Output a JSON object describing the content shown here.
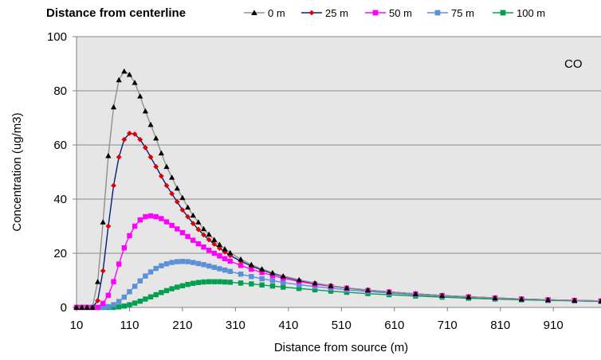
{
  "chart_data": {
    "type": "line",
    "legend": {
      "title": "Distance from centerline",
      "placement": "top"
    },
    "annotation": "CO",
    "xlabel": "Distance from source (m)",
    "ylabel": "Concentration (ug/m3)",
    "xlim": [
      10,
      1000
    ],
    "ylim": [
      0,
      100
    ],
    "x_ticks": [
      10,
      110,
      210,
      310,
      410,
      510,
      610,
      710,
      810,
      910
    ],
    "x_tick_labels": [
      "10",
      "110",
      "210",
      "310",
      "410",
      "510",
      "610",
      "710",
      "810",
      "910"
    ],
    "y_ticks": [
      0,
      20,
      40,
      60,
      80,
      100
    ],
    "y_tick_labels": [
      "0",
      "20",
      "40",
      "60",
      "80",
      "100"
    ],
    "grid": {
      "horizontal": true,
      "vertical": false
    },
    "plot_background": "#e6e6e6",
    "series": [
      {
        "name": "0 m",
        "line_color": "#909090",
        "marker_color": "#000000",
        "marker": "triangle",
        "points": [
          [
            10,
            0
          ],
          [
            20,
            0
          ],
          [
            30,
            0
          ],
          [
            40,
            0
          ],
          [
            50,
            9.5
          ],
          [
            60,
            31.5
          ],
          [
            70,
            56
          ],
          [
            80,
            74
          ],
          [
            90,
            84
          ],
          [
            100,
            87.2
          ],
          [
            110,
            86
          ],
          [
            120,
            83
          ],
          [
            130,
            78
          ],
          [
            140,
            72.5
          ],
          [
            150,
            67.5
          ],
          [
            160,
            62.5
          ],
          [
            170,
            57
          ],
          [
            180,
            52
          ],
          [
            190,
            48
          ],
          [
            200,
            44
          ],
          [
            210,
            40.5
          ],
          [
            220,
            37
          ],
          [
            230,
            34
          ],
          [
            240,
            31.5
          ],
          [
            250,
            29
          ],
          [
            260,
            27
          ],
          [
            270,
            25
          ],
          [
            280,
            23.2
          ],
          [
            290,
            21.6
          ],
          [
            300,
            20.2
          ],
          [
            320,
            17.8
          ],
          [
            340,
            15.8
          ],
          [
            360,
            14.2
          ],
          [
            380,
            12.8
          ],
          [
            400,
            11.6
          ],
          [
            430,
            10.2
          ],
          [
            460,
            9
          ],
          [
            490,
            8
          ],
          [
            520,
            7.2
          ],
          [
            560,
            6.4
          ],
          [
            600,
            5.7
          ],
          [
            650,
            5
          ],
          [
            700,
            4.4
          ],
          [
            750,
            3.9
          ],
          [
            800,
            3.5
          ],
          [
            850,
            3.1
          ],
          [
            900,
            2.8
          ],
          [
            950,
            2.6
          ],
          [
            1000,
            2.4
          ]
        ]
      },
      {
        "name": "25 m",
        "line_color": "#002080",
        "marker_color": "#e00000",
        "marker": "diamond",
        "points": [
          [
            10,
            0
          ],
          [
            20,
            0
          ],
          [
            30,
            0
          ],
          [
            40,
            0
          ],
          [
            50,
            2.5
          ],
          [
            60,
            13.5
          ],
          [
            70,
            30
          ],
          [
            80,
            45
          ],
          [
            90,
            55.5
          ],
          [
            100,
            62
          ],
          [
            110,
            64.3
          ],
          [
            120,
            64
          ],
          [
            130,
            62
          ],
          [
            140,
            59
          ],
          [
            150,
            55.5
          ],
          [
            160,
            52
          ],
          [
            170,
            48.5
          ],
          [
            180,
            45
          ],
          [
            190,
            42
          ],
          [
            200,
            39
          ],
          [
            210,
            36
          ],
          [
            220,
            33.5
          ],
          [
            230,
            31
          ],
          [
            240,
            28.8
          ],
          [
            250,
            26.8
          ],
          [
            260,
            25
          ],
          [
            270,
            23.4
          ],
          [
            280,
            21.9
          ],
          [
            290,
            20.5
          ],
          [
            300,
            19.2
          ],
          [
            320,
            17.1
          ],
          [
            340,
            15.3
          ],
          [
            360,
            13.8
          ],
          [
            380,
            12.5
          ],
          [
            400,
            11.4
          ],
          [
            430,
            10
          ],
          [
            460,
            8.9
          ],
          [
            490,
            8
          ],
          [
            520,
            7.2
          ],
          [
            560,
            6.4
          ],
          [
            600,
            5.7
          ],
          [
            650,
            5
          ],
          [
            700,
            4.4
          ],
          [
            750,
            3.9
          ],
          [
            800,
            3.5
          ],
          [
            850,
            3.1
          ],
          [
            900,
            2.8
          ],
          [
            950,
            2.6
          ],
          [
            1000,
            2.4
          ]
        ]
      },
      {
        "name": "50 m",
        "line_color": "#ff00ff",
        "marker_color": "#ff00ff",
        "marker": "square",
        "points": [
          [
            10,
            0
          ],
          [
            20,
            0
          ],
          [
            30,
            0
          ],
          [
            40,
            0
          ],
          [
            50,
            0
          ],
          [
            60,
            1.5
          ],
          [
            70,
            4.5
          ],
          [
            80,
            9.5
          ],
          [
            90,
            16
          ],
          [
            100,
            22
          ],
          [
            110,
            26.5
          ],
          [
            120,
            30
          ],
          [
            130,
            32.3
          ],
          [
            140,
            33.5
          ],
          [
            150,
            33.8
          ],
          [
            160,
            33.5
          ],
          [
            170,
            32.8
          ],
          [
            180,
            31.6
          ],
          [
            190,
            30.3
          ],
          [
            200,
            29
          ],
          [
            210,
            27.6
          ],
          [
            220,
            26.2
          ],
          [
            230,
            24.8
          ],
          [
            240,
            23.5
          ],
          [
            250,
            22.3
          ],
          [
            260,
            21.1
          ],
          [
            270,
            20
          ],
          [
            280,
            19
          ],
          [
            290,
            18
          ],
          [
            300,
            17.1
          ],
          [
            320,
            15.5
          ],
          [
            340,
            14.1
          ],
          [
            360,
            12.9
          ],
          [
            380,
            11.8
          ],
          [
            400,
            10.8
          ],
          [
            430,
            9.6
          ],
          [
            460,
            8.6
          ],
          [
            490,
            7.8
          ],
          [
            520,
            7.1
          ],
          [
            560,
            6.3
          ],
          [
            600,
            5.7
          ],
          [
            650,
            5
          ],
          [
            700,
            4.4
          ],
          [
            750,
            3.9
          ],
          [
            800,
            3.5
          ],
          [
            850,
            3.1
          ],
          [
            900,
            2.8
          ],
          [
            950,
            2.6
          ],
          [
            1000,
            2.4
          ]
        ]
      },
      {
        "name": "75 m",
        "line_color": "#5b8fd8",
        "marker_color": "#5b8fd8",
        "marker": "square",
        "points": [
          [
            10,
            0
          ],
          [
            20,
            0
          ],
          [
            30,
            0
          ],
          [
            40,
            0
          ],
          [
            50,
            0
          ],
          [
            60,
            0
          ],
          [
            70,
            0.3
          ],
          [
            80,
            1
          ],
          [
            90,
            2.2
          ],
          [
            100,
            3.8
          ],
          [
            110,
            5.8
          ],
          [
            120,
            7.8
          ],
          [
            130,
            9.8
          ],
          [
            140,
            11.6
          ],
          [
            150,
            13.1
          ],
          [
            160,
            14.4
          ],
          [
            170,
            15.4
          ],
          [
            180,
            16.1
          ],
          [
            190,
            16.6
          ],
          [
            200,
            16.9
          ],
          [
            210,
            17
          ],
          [
            220,
            16.9
          ],
          [
            230,
            16.6
          ],
          [
            240,
            16.2
          ],
          [
            250,
            15.8
          ],
          [
            260,
            15.3
          ],
          [
            270,
            14.8
          ],
          [
            280,
            14.3
          ],
          [
            290,
            13.8
          ],
          [
            300,
            13.3
          ],
          [
            320,
            12.3
          ],
          [
            340,
            11.4
          ],
          [
            360,
            10.6
          ],
          [
            380,
            9.9
          ],
          [
            400,
            9.2
          ],
          [
            430,
            8.4
          ],
          [
            460,
            7.7
          ],
          [
            490,
            7.1
          ],
          [
            520,
            6.5
          ],
          [
            560,
            5.9
          ],
          [
            600,
            5.3
          ],
          [
            650,
            4.7
          ],
          [
            700,
            4.2
          ],
          [
            750,
            3.8
          ],
          [
            800,
            3.4
          ],
          [
            850,
            3.1
          ],
          [
            900,
            2.8
          ],
          [
            950,
            2.5
          ],
          [
            1000,
            2.3
          ]
        ]
      },
      {
        "name": "100 m",
        "line_color": "#00a050",
        "marker_color": "#00a050",
        "marker": "square",
        "points": [
          [
            10,
            0
          ],
          [
            20,
            0
          ],
          [
            30,
            0
          ],
          [
            40,
            0
          ],
          [
            50,
            0
          ],
          [
            60,
            0
          ],
          [
            70,
            0
          ],
          [
            80,
            0
          ],
          [
            90,
            0.2
          ],
          [
            100,
            0.5
          ],
          [
            110,
            1
          ],
          [
            120,
            1.6
          ],
          [
            130,
            2.3
          ],
          [
            140,
            3.1
          ],
          [
            150,
            3.9
          ],
          [
            160,
            4.7
          ],
          [
            170,
            5.5
          ],
          [
            180,
            6.2
          ],
          [
            190,
            6.9
          ],
          [
            200,
            7.5
          ],
          [
            210,
            8
          ],
          [
            220,
            8.5
          ],
          [
            230,
            8.9
          ],
          [
            240,
            9.2
          ],
          [
            250,
            9.4
          ],
          [
            260,
            9.5
          ],
          [
            270,
            9.5
          ],
          [
            280,
            9.5
          ],
          [
            290,
            9.4
          ],
          [
            300,
            9.3
          ],
          [
            320,
            9
          ],
          [
            340,
            8.7
          ],
          [
            360,
            8.3
          ],
          [
            380,
            7.9
          ],
          [
            400,
            7.5
          ],
          [
            430,
            7
          ],
          [
            460,
            6.5
          ],
          [
            490,
            6
          ],
          [
            520,
            5.6
          ],
          [
            560,
            5.1
          ],
          [
            600,
            4.7
          ],
          [
            650,
            4.2
          ],
          [
            700,
            3.8
          ],
          [
            750,
            3.4
          ],
          [
            800,
            3.1
          ],
          [
            850,
            2.8
          ],
          [
            900,
            2.6
          ],
          [
            950,
            2.4
          ],
          [
            1000,
            2.2
          ]
        ]
      }
    ]
  }
}
